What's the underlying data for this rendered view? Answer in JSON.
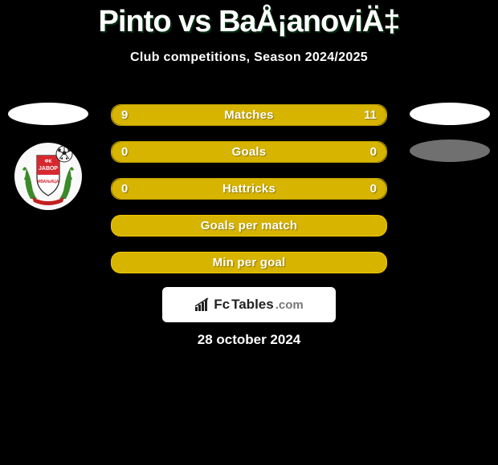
{
  "header": {
    "player_a": "Pinto",
    "vs": "vs",
    "player_b": "BaÅ¡anoviÄ‡",
    "subtitle": "Club competitions, Season 2024/2025"
  },
  "colors": {
    "bg": "#000000",
    "text": "#ffffff",
    "bar_fill": "#d6b400",
    "bar_border_full": "#f0c800",
    "bar_border_split": "#c0a000",
    "right_fill_track": "#d6b400",
    "left_ellipse": "#ffffff",
    "right_ellipse": "#707070"
  },
  "stats": [
    {
      "label": "Matches",
      "left_value": "9",
      "right_value": "11",
      "left_pct": 45,
      "right_pct": 55,
      "mode": "split"
    },
    {
      "label": "Goals",
      "left_value": "0",
      "right_value": "0",
      "left_pct": 50,
      "right_pct": 50,
      "mode": "split"
    },
    {
      "label": "Hattricks",
      "left_value": "0",
      "right_value": "0",
      "left_pct": 50,
      "right_pct": 50,
      "mode": "split"
    },
    {
      "label": "Goals per match",
      "left_value": "",
      "right_value": "",
      "left_pct": 100,
      "right_pct": 0,
      "mode": "full"
    },
    {
      "label": "Min per goal",
      "left_value": "",
      "right_value": "",
      "left_pct": 100,
      "right_pct": 0,
      "mode": "full"
    }
  ],
  "footer": {
    "site_fc": "Fc",
    "site_tables": "Tables",
    "site_dotcom": ".com",
    "date": "28 october 2024"
  },
  "left_badge": {
    "shield_top": "#d7282f",
    "shield_bottom": "#ffffff",
    "laurel": "#3a8a2a",
    "text_line1": "ФК",
    "text_line2": "ЈАВОР",
    "text_line3": "ИВАЊИЦА"
  }
}
